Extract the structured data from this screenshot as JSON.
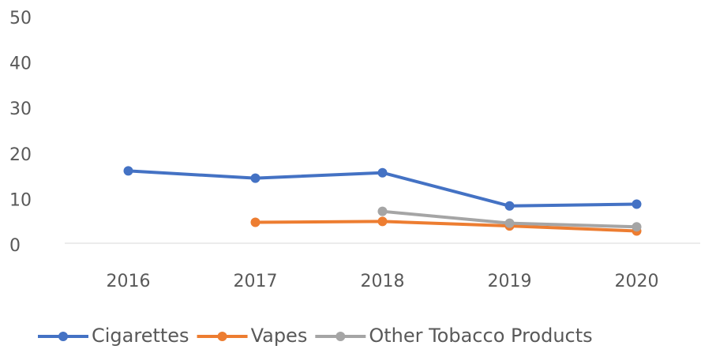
{
  "chart_data": {
    "type": "line",
    "categories": [
      "2016",
      "2017",
      "2018",
      "2019",
      "2020"
    ],
    "series": [
      {
        "name": "Cigarettes",
        "color": "#4472c4",
        "values": [
          15.9,
          14.3,
          15.5,
          8.2,
          8.6
        ]
      },
      {
        "name": "Vapes",
        "color": "#ed7d31",
        "values": [
          null,
          4.6,
          4.8,
          3.8,
          2.7
        ]
      },
      {
        "name": "Other Tobacco Products",
        "color": "#a5a5a5",
        "values": [
          null,
          null,
          7.0,
          4.4,
          3.6
        ]
      }
    ],
    "ylim": [
      0,
      50
    ],
    "yticks": [
      0,
      10,
      20,
      30,
      40,
      50
    ],
    "grid": false,
    "legend": "bottom"
  }
}
